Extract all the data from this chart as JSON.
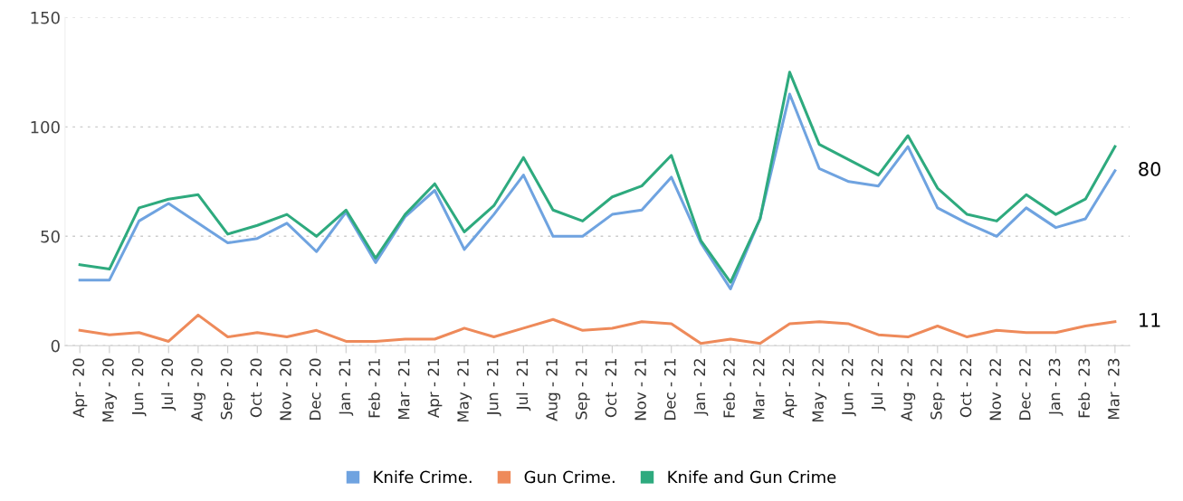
{
  "chart_data": {
    "type": "line",
    "categories": [
      "Apr - 20",
      "May - 20",
      "Jun - 20",
      "Jul - 20",
      "Aug - 20",
      "Sep - 20",
      "Oct - 20",
      "Nov - 20",
      "Dec - 20",
      "Jan - 21",
      "Feb - 21",
      "Mar - 21",
      "Apr - 21",
      "May - 21",
      "Jun - 21",
      "Jul - 21",
      "Aug - 21",
      "Sep - 21",
      "Oct - 21",
      "Nov - 21",
      "Dec - 21",
      "Jan - 22",
      "Feb - 22",
      "Mar - 22",
      "Apr - 22",
      "May - 22",
      "Jun - 22",
      "Jul - 22",
      "Aug - 22",
      "Sep - 22",
      "Oct - 22",
      "Nov - 22",
      "Dec - 22",
      "Jan - 23",
      "Feb - 23",
      "Mar - 23"
    ],
    "series": [
      {
        "name": "Knife Crime.",
        "color": "#6fa3e0",
        "values": [
          30,
          30,
          57,
          65,
          56,
          47,
          49,
          56,
          43,
          61,
          38,
          59,
          71,
          44,
          60,
          78,
          50,
          50,
          60,
          62,
          77,
          47,
          26,
          58,
          115,
          81,
          75,
          73,
          91,
          63,
          56,
          50,
          63,
          54,
          58,
          80
        ]
      },
      {
        "name": "Gun Crime.",
        "color": "#ee8a5a",
        "values": [
          7,
          5,
          6,
          2,
          14,
          4,
          6,
          4,
          7,
          2,
          2,
          3,
          3,
          8,
          4,
          8,
          12,
          7,
          8,
          11,
          10,
          1,
          3,
          1,
          10,
          11,
          10,
          5,
          4,
          9,
          4,
          7,
          6,
          6,
          9,
          11
        ]
      },
      {
        "name": "Knife and Gun Crime",
        "color": "#2eaa7e",
        "values": [
          37,
          35,
          63,
          67,
          69,
          51,
          55,
          60,
          50,
          62,
          40,
          60,
          74,
          52,
          64,
          86,
          62,
          57,
          68,
          73,
          87,
          48,
          29,
          58,
          125,
          92,
          85,
          78,
          96,
          72,
          60,
          57,
          69,
          60,
          67,
          91
        ]
      }
    ],
    "ylim": [
      0,
      150
    ],
    "yticks": [
      0,
      50,
      100,
      150
    ],
    "grid": "y",
    "legend": "bottom",
    "marker": "none",
    "line_style": "solid",
    "annotations": [
      {
        "text": "80",
        "x": "Mar - 23",
        "y": 80
      },
      {
        "text": "11",
        "x": "Mar - 23",
        "y": 11
      }
    ]
  }
}
